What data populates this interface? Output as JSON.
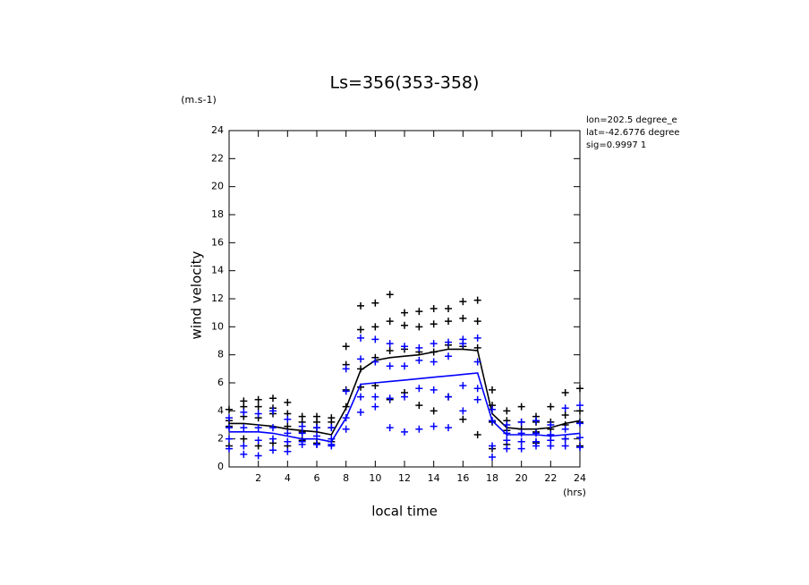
{
  "chart_data": {
    "type": "line",
    "title": "Ls=356(353-358)",
    "y_unit": "(m.s-1)",
    "y_label": "wind velocity",
    "x_label": "local time",
    "x_unit": "(hrs)",
    "info": [
      "lon=202.5 degree_e",
      "lat=-42.6776 degree",
      "sig=0.9997 1"
    ],
    "x": [
      0,
      1,
      2,
      3,
      4,
      5,
      6,
      7,
      8,
      9,
      10,
      11,
      12,
      13,
      14,
      15,
      16,
      17,
      18,
      19,
      20,
      21,
      22,
      23,
      24
    ],
    "xlim": [
      0,
      24
    ],
    "xticks": [
      2,
      4,
      6,
      8,
      10,
      12,
      14,
      16,
      18,
      20,
      22,
      24
    ],
    "ylim": [
      0,
      24
    ],
    "yticks": [
      0,
      2,
      4,
      6,
      8,
      10,
      12,
      14,
      16,
      18,
      20,
      22,
      24
    ],
    "series": [
      {
        "color": "#000000",
        "values": [
          3.1,
          3.1,
          3.0,
          2.9,
          2.7,
          2.6,
          2.5,
          2.3,
          4.2,
          6.9,
          7.6,
          7.8,
          7.9,
          8.0,
          8.2,
          8.4,
          8.4,
          8.3,
          3.8,
          2.8,
          2.7,
          2.7,
          2.8,
          3.1,
          3.3
        ],
        "points": [
          [
            4.1,
            3.3,
            2.9,
            1.5
          ],
          [
            4.7,
            4.3,
            3.6,
            2.0
          ],
          [
            4.8,
            4.3,
            3.5,
            1.5
          ],
          [
            4.9,
            4.2,
            3.8,
            1.7
          ],
          [
            4.6,
            3.8,
            2.9,
            1.5
          ],
          [
            3.6,
            3.2,
            2.5,
            1.9
          ],
          [
            3.6,
            3.2,
            2.8,
            1.7
          ],
          [
            3.5,
            3.2,
            2.8,
            1.8
          ],
          [
            8.6,
            7.3,
            5.5,
            4.3
          ],
          [
            11.5,
            9.8,
            7.0,
            5.7
          ],
          [
            11.7,
            10.0,
            7.8,
            5.8
          ],
          [
            12.3,
            10.4,
            8.3,
            4.8
          ],
          [
            11.0,
            10.1,
            8.4,
            5.3
          ],
          [
            11.1,
            10.0,
            8.2,
            4.4
          ],
          [
            11.3,
            10.2,
            8.2,
            4.0
          ],
          [
            11.3,
            10.4,
            8.7,
            5.0
          ],
          [
            11.8,
            10.6,
            8.6,
            3.4
          ],
          [
            11.9,
            10.4,
            8.5,
            2.3
          ],
          [
            5.5,
            4.4,
            3.2,
            1.3
          ],
          [
            4.0,
            3.3,
            2.6,
            1.6
          ],
          [
            4.3,
            3.2,
            2.7,
            1.8
          ],
          [
            3.6,
            3.2,
            2.5,
            1.7
          ],
          [
            4.3,
            3.2,
            2.7,
            1.9
          ],
          [
            5.3,
            3.7,
            3.0,
            2.0
          ],
          [
            5.6,
            4.0,
            3.2,
            1.5
          ]
        ]
      },
      {
        "color": "#0000ff",
        "values": [
          2.5,
          2.5,
          2.5,
          2.4,
          2.2,
          2.0,
          2.0,
          1.8,
          3.5,
          5.9,
          6.0,
          6.1,
          6.2,
          6.3,
          6.4,
          6.5,
          6.6,
          6.7,
          3.3,
          2.3,
          2.3,
          2.3,
          2.2,
          2.3,
          2.4
        ],
        "points": [
          [
            3.5,
            2.8,
            2.0,
            1.3
          ],
          [
            3.9,
            2.8,
            1.5,
            0.9
          ],
          [
            3.8,
            2.8,
            1.9,
            0.8
          ],
          [
            4.0,
            2.8,
            2.0,
            1.2
          ],
          [
            3.4,
            2.4,
            1.8,
            1.1
          ],
          [
            2.9,
            2.4,
            1.8,
            1.6
          ],
          [
            2.8,
            2.2,
            1.6,
            1.6
          ],
          [
            2.8,
            2.0,
            1.6,
            1.5
          ],
          [
            7.0,
            5.4,
            3.5,
            2.7
          ],
          [
            9.2,
            7.7,
            5.0,
            3.9
          ],
          [
            9.1,
            7.5,
            5.0,
            4.3
          ],
          [
            8.8,
            7.2,
            4.9,
            2.8
          ],
          [
            8.6,
            7.2,
            5.0,
            2.5
          ],
          [
            8.5,
            7.6,
            5.6,
            2.7
          ],
          [
            8.8,
            7.5,
            5.5,
            2.9
          ],
          [
            8.9,
            7.9,
            5.0,
            2.8
          ],
          [
            9.1,
            8.8,
            5.8,
            4.0
          ],
          [
            9.2,
            7.5,
            5.6,
            4.8
          ],
          [
            4.1,
            3.3,
            1.5,
            0.7
          ],
          [
            3.0,
            2.4,
            1.9,
            1.3
          ],
          [
            3.2,
            2.4,
            1.8,
            1.3
          ],
          [
            3.3,
            2.4,
            1.8,
            1.5
          ],
          [
            3.0,
            2.3,
            1.9,
            1.5
          ],
          [
            4.2,
            2.7,
            2.0,
            1.5
          ],
          [
            4.4,
            3.1,
            2.1,
            1.4
          ]
        ]
      }
    ]
  }
}
